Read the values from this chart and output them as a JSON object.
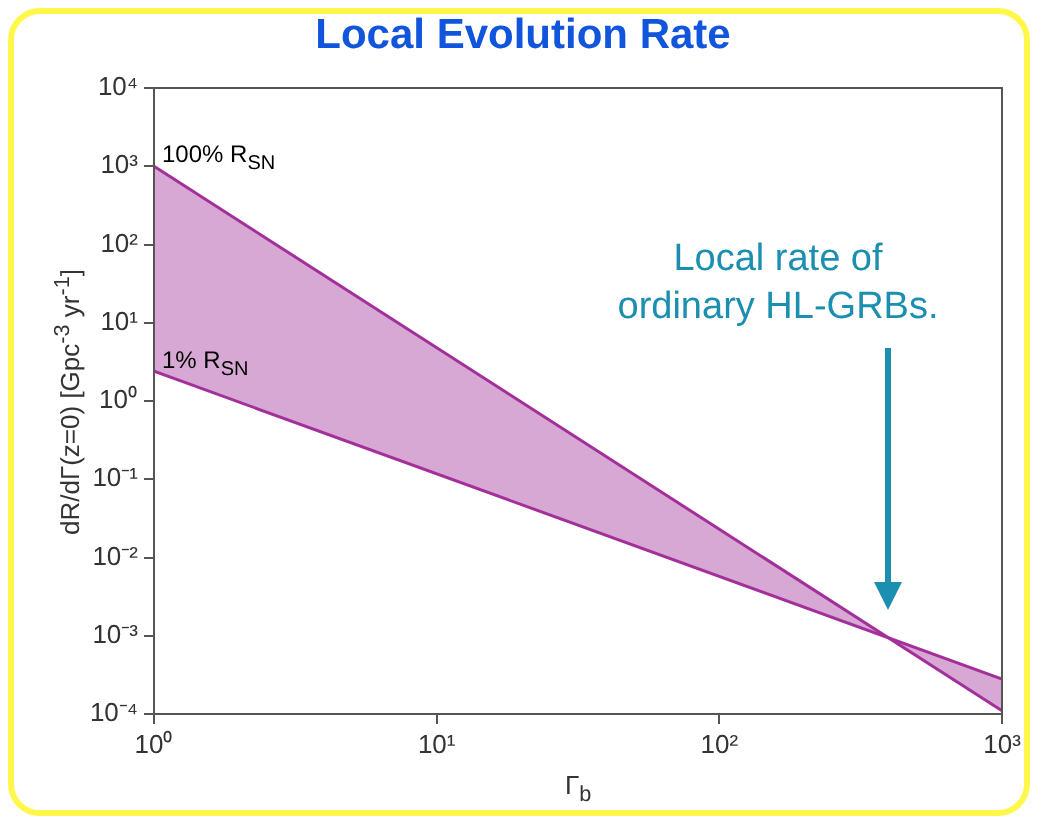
{
  "chart_data": {
    "type": "line",
    "title": "Local Evolution Rate",
    "xlabel": "Γ$_{b}$",
    "ylabel": "dR/dΓ(z=0) [Gpc$^{-3}$ yr$^{-1}$]",
    "log": "xy",
    "x": [
      1,
      1000
    ],
    "series": [
      {
        "type": "line",
        "color": "#a3309a",
        "values": [
          1000,
          0.00011
        ],
        "lower": [
          2.4,
          0.00028
        ],
        "upper": [
          1000,
          0.00011
        ]
      },
      {
        "type": "line",
        "color": "#a3309a",
        "values": [
          2.4,
          0.00028
        ]
      }
    ],
    "xlim": [
      1,
      1000
    ],
    "xticks": [
      {
        "value": 1,
        "label": "10⁰"
      },
      {
        "value": 10,
        "label": "10¹"
      },
      {
        "value": 100,
        "label": "10²"
      },
      {
        "value": 1000,
        "label": "10³"
      }
    ],
    "ylim": [
      0.0001,
      10000
    ],
    "yticks": [
      {
        "value": 0.0001,
        "label": "10⁻⁴"
      },
      {
        "value": 0.001,
        "label": "10⁻³"
      },
      {
        "value": 0.01,
        "label": "10⁻²"
      },
      {
        "value": 0.1,
        "label": "10⁻¹"
      },
      {
        "value": 1,
        "label": "10⁰"
      },
      {
        "value": 10,
        "label": "10¹"
      },
      {
        "value": 100,
        "label": "10²"
      },
      {
        "value": 1000,
        "label": "10³"
      },
      {
        "value": 10000,
        "label": "10⁴"
      }
    ],
    "grid": false,
    "legend": false,
    "annotations": [
      {
        "text": "100% R$_{SN}$",
        "x": 1,
        "y": 1000
      },
      {
        "text": "1% R$_{SN}$",
        "x": 1,
        "y": 2.4
      },
      "Local rate of ordinary HL-GRBs."
    ]
  }
}
